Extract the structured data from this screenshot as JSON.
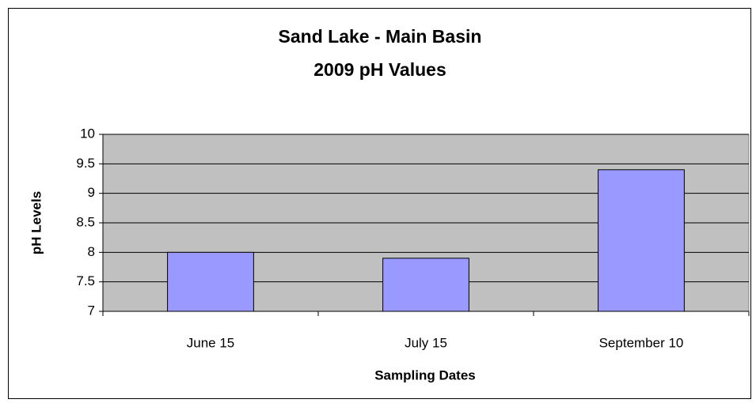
{
  "chart_data": {
    "type": "bar",
    "title": [
      "Sand Lake - Main Basin",
      "2009 pH Values"
    ],
    "x_label": "Sampling Dates",
    "y_label": "pH Levels",
    "categories": [
      "June 15",
      "July 15",
      "September 10"
    ],
    "values": [
      8.0,
      7.9,
      9.4
    ],
    "color": "#9999ff",
    "ylim": [
      7,
      10
    ],
    "yticks": [
      7,
      7.5,
      8,
      8.5,
      9,
      9.5,
      10
    ],
    "grid": true
  }
}
